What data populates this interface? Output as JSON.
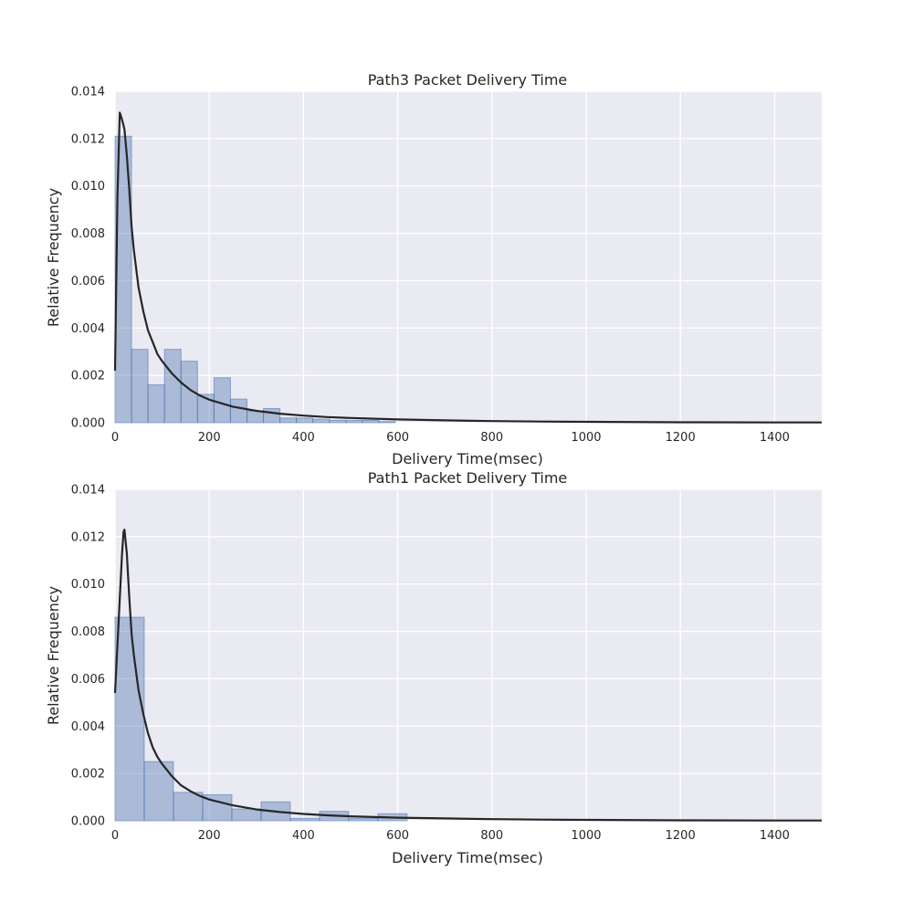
{
  "chart_data": [
    {
      "type": "histogram",
      "title": "Path3 Packet Delivery Time",
      "xlabel": "Delivery Time(msec)",
      "ylabel": "Relative Frequency",
      "xlim": [
        0,
        1500
      ],
      "ylim": [
        0,
        0.014
      ],
      "xticks": [
        0,
        200,
        400,
        600,
        800,
        1000,
        1200,
        1400
      ],
      "yticks": [
        0.0,
        0.002,
        0.004,
        0.006,
        0.008,
        0.01,
        0.012,
        0.014
      ],
      "xtick_labels": [
        "0",
        "200",
        "400",
        "600",
        "800",
        "1000",
        "1200",
        "1400"
      ],
      "ytick_labels": [
        "0.000",
        "0.002",
        "0.004",
        "0.006",
        "0.008",
        "0.010",
        "0.012",
        "0.014"
      ],
      "grid": true,
      "bins": [
        {
          "start": 0,
          "end": 35,
          "value": 0.0121
        },
        {
          "start": 35,
          "end": 70,
          "value": 0.0031
        },
        {
          "start": 70,
          "end": 105,
          "value": 0.0016
        },
        {
          "start": 105,
          "end": 140,
          "value": 0.0031
        },
        {
          "start": 140,
          "end": 175,
          "value": 0.0026
        },
        {
          "start": 175,
          "end": 210,
          "value": 0.0012
        },
        {
          "start": 210,
          "end": 245,
          "value": 0.0019
        },
        {
          "start": 245,
          "end": 280,
          "value": 0.001
        },
        {
          "start": 280,
          "end": 315,
          "value": 0.0005
        },
        {
          "start": 315,
          "end": 350,
          "value": 0.0006
        },
        {
          "start": 350,
          "end": 385,
          "value": 0.0002
        },
        {
          "start": 385,
          "end": 420,
          "value": 0.0002
        },
        {
          "start": 420,
          "end": 455,
          "value": 0.00015
        },
        {
          "start": 455,
          "end": 490,
          "value": 0.0001
        },
        {
          "start": 490,
          "end": 525,
          "value": 0.0001
        },
        {
          "start": 525,
          "end": 560,
          "value": 0.0001
        },
        {
          "start": 560,
          "end": 595,
          "value": 5e-05
        }
      ],
      "kde": {
        "x": [
          0,
          5,
          10,
          15,
          20,
          25,
          30,
          35,
          40,
          50,
          60,
          70,
          80,
          90,
          100,
          120,
          140,
          160,
          180,
          200,
          250,
          300,
          350,
          400,
          450,
          500,
          600,
          700,
          800,
          900,
          1000,
          1200,
          1400,
          1500
        ],
        "y": [
          0.0022,
          0.0095,
          0.0131,
          0.0128,
          0.0124,
          0.0113,
          0.0099,
          0.0083,
          0.0073,
          0.0057,
          0.0047,
          0.0039,
          0.0034,
          0.0029,
          0.0026,
          0.0021,
          0.0017,
          0.00138,
          0.00115,
          0.00097,
          0.00068,
          0.0005,
          0.00038,
          0.0003,
          0.00024,
          0.0002,
          0.00014,
          0.0001,
          7e-05,
          5e-05,
          4e-05,
          2e-05,
          1e-05,
          1e-05
        ]
      }
    },
    {
      "type": "histogram",
      "title": "Path1 Packet Delivery Time",
      "xlabel": "Delivery Time(msec)",
      "ylabel": "Relative Frequency",
      "xlim": [
        0,
        1500
      ],
      "ylim": [
        0,
        0.014
      ],
      "xticks": [
        0,
        200,
        400,
        600,
        800,
        1000,
        1200,
        1400
      ],
      "yticks": [
        0.0,
        0.002,
        0.004,
        0.006,
        0.008,
        0.01,
        0.012,
        0.014
      ],
      "xtick_labels": [
        "0",
        "200",
        "400",
        "600",
        "800",
        "1000",
        "1200",
        "1400"
      ],
      "ytick_labels": [
        "0.000",
        "0.002",
        "0.004",
        "0.006",
        "0.008",
        "0.010",
        "0.012",
        "0.014"
      ],
      "grid": true,
      "bins": [
        {
          "start": 0,
          "end": 62,
          "value": 0.0086
        },
        {
          "start": 62,
          "end": 124,
          "value": 0.0025
        },
        {
          "start": 124,
          "end": 186,
          "value": 0.0012
        },
        {
          "start": 186,
          "end": 248,
          "value": 0.0011
        },
        {
          "start": 248,
          "end": 310,
          "value": 0.0005
        },
        {
          "start": 310,
          "end": 372,
          "value": 0.0008
        },
        {
          "start": 372,
          "end": 434,
          "value": 0.0001
        },
        {
          "start": 434,
          "end": 496,
          "value": 0.0004
        },
        {
          "start": 496,
          "end": 558,
          "value": 0.0001
        },
        {
          "start": 558,
          "end": 620,
          "value": 0.0003
        }
      ],
      "kde": {
        "x": [
          0,
          5,
          10,
          15,
          18,
          20,
          25,
          30,
          35,
          40,
          50,
          60,
          70,
          80,
          90,
          100,
          120,
          140,
          160,
          180,
          200,
          250,
          300,
          350,
          400,
          450,
          500,
          600,
          700,
          800,
          900,
          1000,
          1200,
          1400,
          1500
        ],
        "y": [
          0.0054,
          0.0074,
          0.0094,
          0.0113,
          0.0122,
          0.0123,
          0.0113,
          0.0095,
          0.0079,
          0.007,
          0.0055,
          0.0045,
          0.0037,
          0.0031,
          0.0027,
          0.0024,
          0.0019,
          0.0015,
          0.00125,
          0.00105,
          0.0009,
          0.00065,
          0.00048,
          0.00037,
          0.00029,
          0.00023,
          0.00019,
          0.00013,
          0.0001,
          7e-05,
          5e-05,
          4e-05,
          2e-05,
          1e-05,
          1e-05
        ]
      }
    }
  ]
}
